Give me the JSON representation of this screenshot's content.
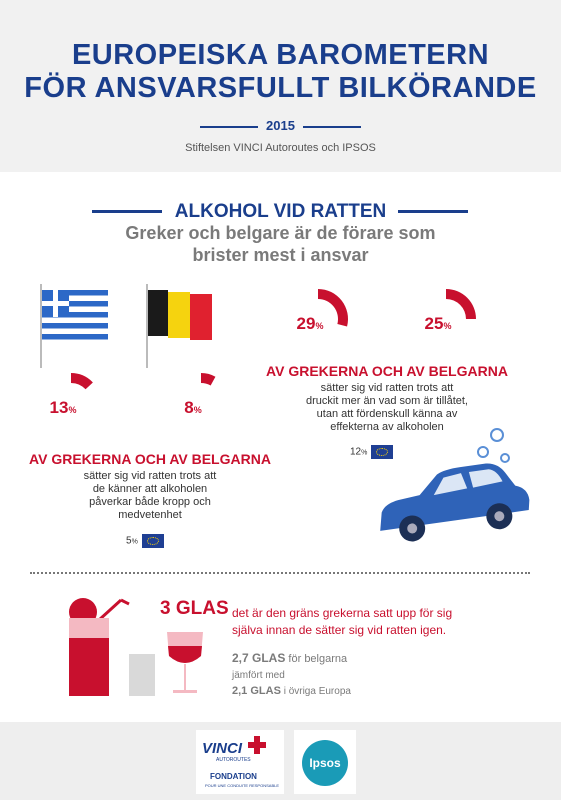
{
  "header": {
    "title_line1": "EUROPEISKA BAROMETERN",
    "title_line2": "FÖR ANSVARSFULLT BILKÖRANDE",
    "year": "2015",
    "subtitle": "Stiftelsen VINCI Autoroutes och IPSOS"
  },
  "section": {
    "title": "ALKOHOL VID RATTEN",
    "subtitle_line1": "Greker och belgare är de förare som",
    "subtitle_line2": "brister mest i ansvar"
  },
  "stat_left": {
    "greece": {
      "value": "13",
      "unit": "%",
      "fraction": 0.13
    },
    "belgium": {
      "value": "8",
      "unit": "%",
      "fraction": 0.08
    },
    "heading": "AV GREKERNA OCH AV BELGARNA",
    "desc_line1": "sätter sig vid ratten trots att",
    "desc_line2": "de känner att alkoholen",
    "desc_line3": "påverkar både kropp och",
    "desc_line4": "medvetenhet",
    "europe": {
      "value": "5",
      "unit": "%"
    }
  },
  "stat_right": {
    "greece": {
      "value": "29",
      "unit": "%",
      "fraction": 0.29
    },
    "belgium": {
      "value": "25",
      "unit": "%",
      "fraction": 0.25
    },
    "heading": "AV GREKERNA OCH AV BELGARNA",
    "desc_line1": "sätter sig vid ratten trots att",
    "desc_line2": "druckit mer än vad som är tillåtet,",
    "desc_line3": "utan att fördenskull känna av",
    "desc_line4": "effekterna av alkoholen",
    "europe": {
      "value": "12",
      "unit": "%"
    }
  },
  "glasses": {
    "big": "3 GLAS",
    "desc_line1": "det är den gräns grekerna satt upp för sig",
    "desc_line2": "själva innan de sätter sig vid ratten igen.",
    "belgium_value": "2,7 GLAS",
    "belgium_text": "för belgarna",
    "compared": "jämfört med",
    "europe_value": "2,1 GLAS",
    "europe_text": "i övriga Europa"
  },
  "footer": {
    "vinci": "VINCI",
    "autoroutes": "AUTOROUTES",
    "fondation": "FONDATION",
    "fondation_sub": "POUR UNE CONDUITE RESPONSABLE",
    "ipsos": "Ipsos"
  },
  "colors": {
    "blue": "#1a3e8c",
    "red": "#c8102e",
    "gray": "#7a7a7a"
  }
}
